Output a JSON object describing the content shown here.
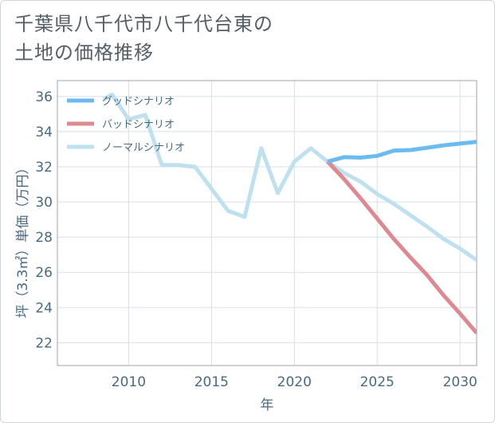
{
  "title_lines": [
    "千葉県八千代市八千代台東の",
    "土地の価格推移"
  ],
  "chart_data": {
    "type": "line",
    "title": "千葉県八千代市八千代台東の土地の価格推移",
    "xlabel": "年",
    "ylabel": "坪（3.3㎡）単価（万円）",
    "xlim": [
      2005.7,
      2031
    ],
    "ylim": [
      20.7,
      36.9
    ],
    "xticks": [
      2010,
      2015,
      2020,
      2025,
      2030
    ],
    "yticks": [
      22,
      24,
      26,
      28,
      30,
      32,
      34,
      36
    ],
    "legend_position": "top-left",
    "series": [
      {
        "name": "グッドシナリオ",
        "color": "#6bbbf0",
        "x": [
          2022,
          2023,
          2024,
          2025,
          2026,
          2027,
          2028,
          2029,
          2030,
          2031
        ],
        "y": [
          32.3,
          32.55,
          32.52,
          32.62,
          32.92,
          32.95,
          33.08,
          33.22,
          33.32,
          33.42
        ]
      },
      {
        "name": "バッドシナリオ",
        "color": "#dc8a92",
        "x": [
          2022,
          2023,
          2024,
          2025,
          2026,
          2027,
          2028,
          2029,
          2030,
          2031
        ],
        "y": [
          32.3,
          31.3,
          30.2,
          29.05,
          27.9,
          26.85,
          25.85,
          24.7,
          23.65,
          22.55
        ]
      },
      {
        "name": "ノーマルシナリオ",
        "color": "#bfe0ee",
        "x": [
          2008.5,
          2009,
          2010,
          2011,
          2012,
          2013,
          2014,
          2015,
          2016,
          2017,
          2018,
          2019,
          2020,
          2021,
          2022,
          2023,
          2024,
          2025,
          2026,
          2027,
          2028,
          2029,
          2030,
          2031
        ],
        "y": [
          35.85,
          36.1,
          34.7,
          34.95,
          32.1,
          32.1,
          32.0,
          30.75,
          29.5,
          29.15,
          33.05,
          30.5,
          32.3,
          33.05,
          32.3,
          31.65,
          31.15,
          30.45,
          29.9,
          29.25,
          28.6,
          27.9,
          27.35,
          26.7
        ]
      }
    ]
  }
}
